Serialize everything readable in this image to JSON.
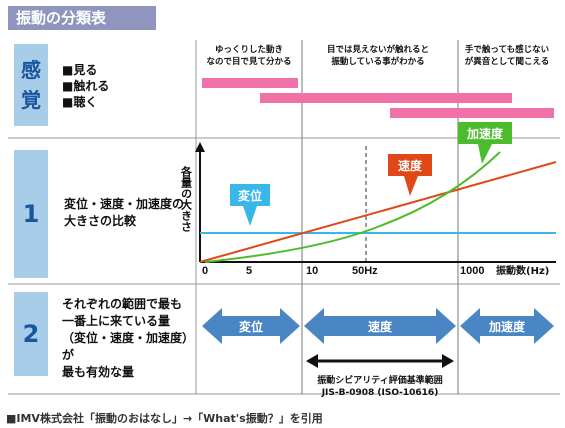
{
  "header": {
    "title": "振動の分類表"
  },
  "sense_section": {
    "label_lines": [
      "感",
      "覚"
    ],
    "items": [
      "■見る",
      "■触れる",
      "■聴く"
    ],
    "notes": [
      [
        "ゆっくりした動き",
        "なので目で見て分かる"
      ],
      [
        "目では見えないが触れると",
        "振動している事がわかる"
      ],
      [
        "手で触っても感じない",
        "が異音として聞こえる"
      ]
    ],
    "bar_color": "#f070a8"
  },
  "section1": {
    "number": "1",
    "description_lines": [
      "変位・速度・加速度の",
      "大きさの比較"
    ]
  },
  "section2": {
    "number": "2",
    "description_lines": [
      "それぞれの範囲で最も",
      "一番上に来ている量",
      "（変位・速度・加速度）が",
      "最も有効な量"
    ]
  },
  "chart_data": {
    "type": "line",
    "ylabel": "各量の大きさ",
    "x_ticks": [
      "0",
      "5",
      "10",
      "50Hz",
      "1000"
    ],
    "x_unit_label": "振動数(Hz)",
    "series": [
      {
        "name": "変位",
        "color": "#38b8e8"
      },
      {
        "name": "速度",
        "color": "#e04818"
      },
      {
        "name": "加速度",
        "color": "#4cbc2c"
      }
    ]
  },
  "ranges": {
    "arrows": [
      "変位",
      "速度",
      "加速度"
    ],
    "arrow_color": "#4a86c4",
    "sensitivity_lines": [
      "振動シビアリティ評価基準範囲",
      "JIS-B-0908 (ISO-10616)"
    ]
  },
  "footer": {
    "text": "■IMV株式会社「振動のおはなし」→「What's振動？」を引用"
  },
  "icons": {
    "callout_pointer": "triangle-down-icon",
    "double_arrow": "double-arrow-icon"
  }
}
